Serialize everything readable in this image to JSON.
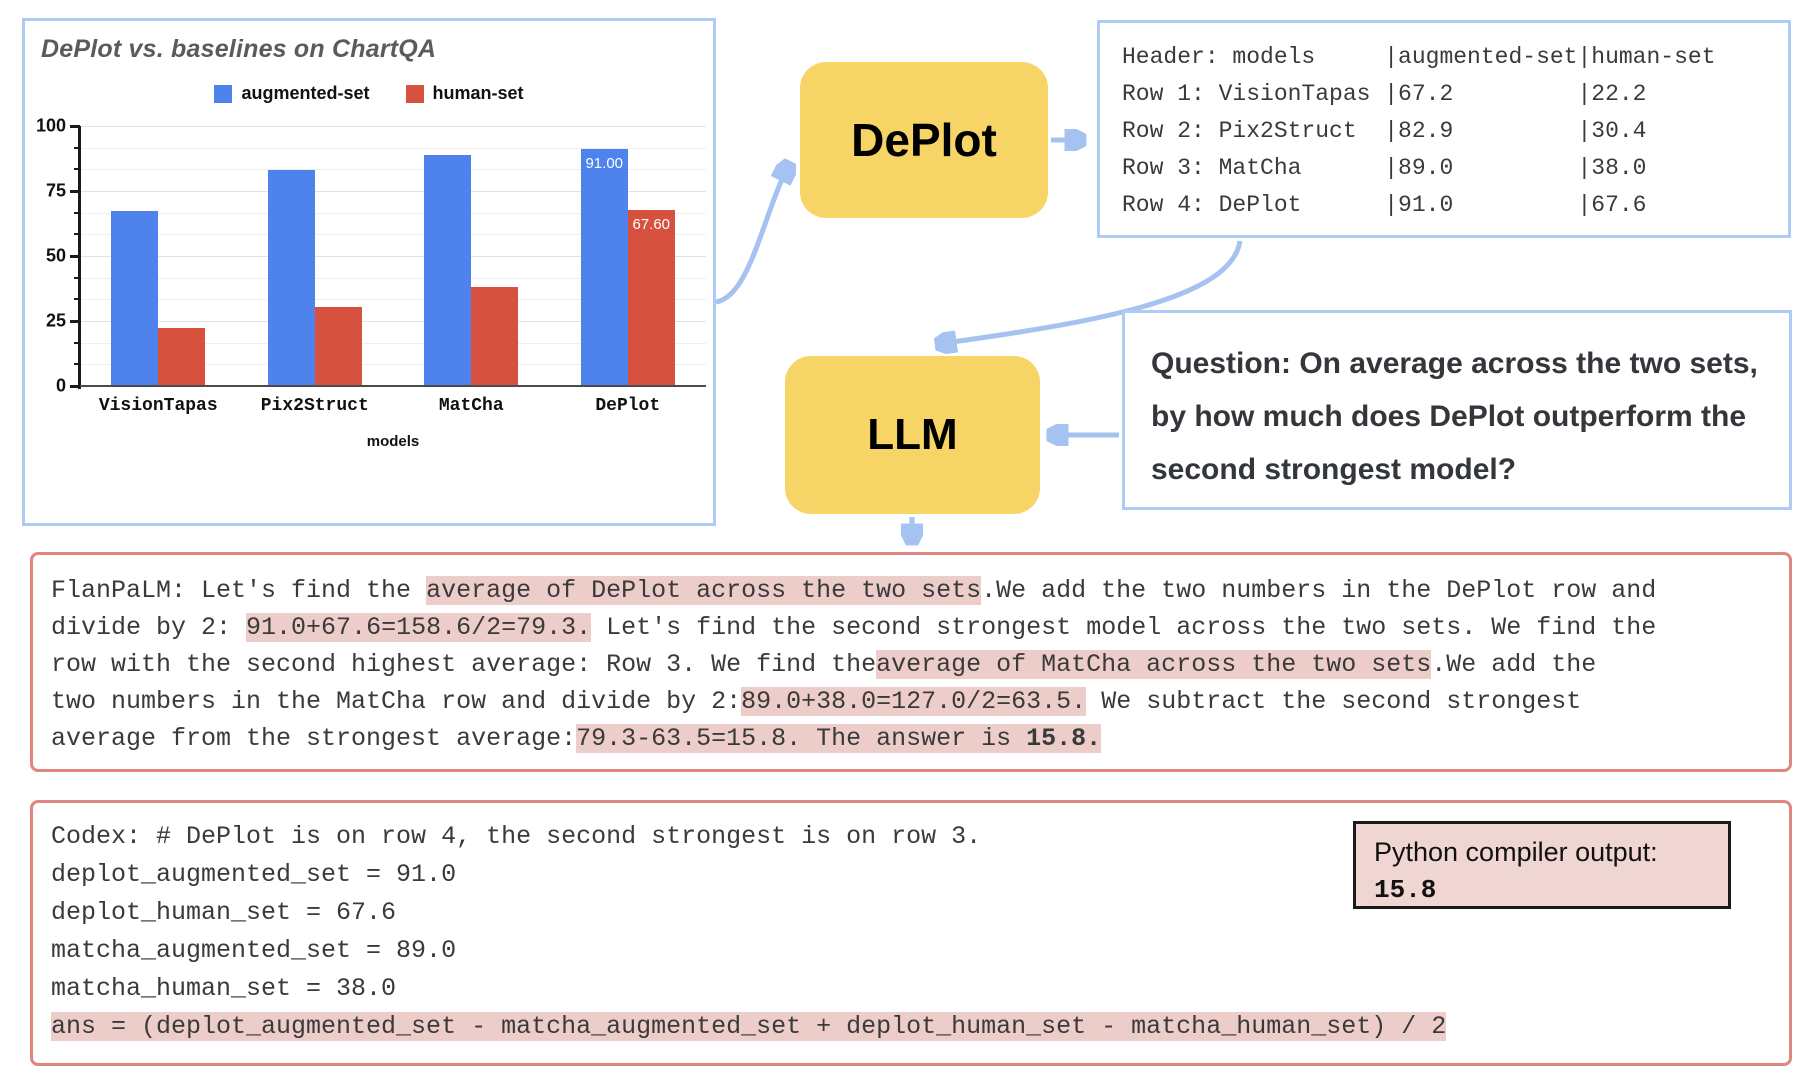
{
  "chart_data": {
    "type": "bar",
    "title": "DePlot vs. baselines on ChartQA",
    "categories": [
      "VisionTapas",
      "Pix2Struct",
      "MatCha",
      "DePlot"
    ],
    "series": [
      {
        "name": "augmented-set",
        "values": [
          67.2,
          82.9,
          89.0,
          91.0
        ]
      },
      {
        "name": "human-set",
        "values": [
          22.2,
          30.4,
          38.0,
          67.6
        ]
      }
    ],
    "bar_value_labels": {
      "DePlot": {
        "augmented-set": "91.00",
        "human-set": "67.60"
      }
    },
    "xlabel": "models",
    "ylabel": "",
    "ylim": [
      0,
      100
    ],
    "yticks": [
      0,
      25,
      50,
      75,
      100
    ],
    "minor_tick_step": 8.3333,
    "grid": true,
    "legend_position": "top"
  },
  "pipeline": {
    "deplot_label": "DePlot",
    "llm_label": "LLM",
    "table_box_lines": [
      "Header: models     |augmented-set|human-set",
      "Row 1: VisionTapas |67.2         |22.2",
      "Row 2: Pix2Struct  |82.9         |30.4",
      "Row 3: MatCha      |89.0         |38.0",
      "Row 4: DePlot      |91.0         |67.6"
    ],
    "question_lines": [
      "Question: On average across the two sets,",
      "by how much does DePlot outperform the",
      "second strongest model?"
    ]
  },
  "flanpalm_output": {
    "lines": [
      [
        {
          "t": "FlanPaLM: Let's find the "
        },
        {
          "t": "average of DePlot across the two sets",
          "hl": true
        },
        {
          "t": ".We add the two numbers in the DePlot row and"
        }
      ],
      [
        {
          "t": "divide by 2: "
        },
        {
          "t": "91.0+67.6=158.6/2=79.3.",
          "hl": true
        },
        {
          "t": " Let's find the second strongest model across the two sets. We find the"
        }
      ],
      [
        {
          "t": "row with the second highest average: Row 3. We find the"
        },
        {
          "t": "average of MatCha across the two sets",
          "hl": true
        },
        {
          "t": ".We add the"
        }
      ],
      [
        {
          "t": "two numbers in the MatCha row and divide by 2:"
        },
        {
          "t": "89.0+38.0=127.0/2=63.5.",
          "hl": true
        },
        {
          "t": " We subtract the second strongest"
        }
      ],
      [
        {
          "t": "average from the strongest average:"
        },
        {
          "t": "79.3-63.5=15.8. The answer is ",
          "hl": true
        },
        {
          "t": "15.8.",
          "hl": true,
          "b": true
        }
      ]
    ]
  },
  "codex_output": {
    "lines": [
      [
        {
          "t": "Codex: # DePlot is on row 4, the second strongest is on row 3."
        }
      ],
      [
        {
          "t": "deplot_augmented_set = 91.0"
        }
      ],
      [
        {
          "t": "deplot_human_set = 67.6"
        }
      ],
      [
        {
          "t": "matcha_augmented_set = 89.0"
        }
      ],
      [
        {
          "t": "matcha_human_set = 38.0"
        }
      ],
      [
        {
          "t": "ans = (deplot_augmented_set - matcha_augmented_set + deplot_human_set - matcha_human_set) / 2",
          "hl": true
        }
      ]
    ],
    "compiler_label": "Python compiler output:",
    "compiler_value": "15.8"
  },
  "colors": {
    "blue_border": "#aecbf5",
    "arrow_blue": "#a5c2f1",
    "process_yellow": "#f6d566",
    "bar_blue": "#4e82ec",
    "bar_red": "#d6523f",
    "red_border": "#e0867e",
    "highlight_pink": "#edcdc9",
    "compiler_bg": "#efd6d3"
  }
}
